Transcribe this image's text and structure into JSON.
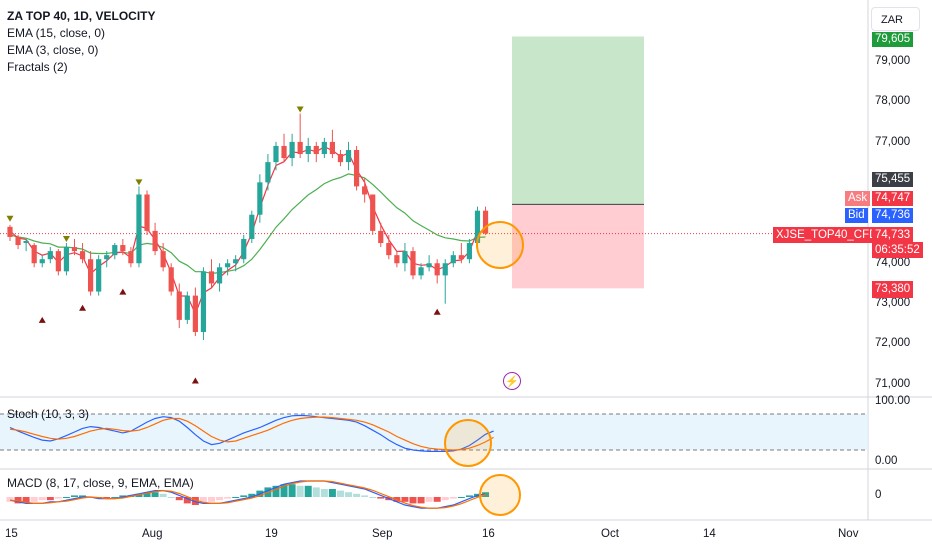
{
  "legend": {
    "title": "ZA TOP 40, 1D, VELOCITY",
    "indicators": [
      "EMA (15, close, 0)",
      "EMA (3, close, 0)",
      "Fractals (2)"
    ]
  },
  "currency_button": "ZAR",
  "price_axis": [
    "79,000",
    "78,000",
    "77,000",
    "74,000",
    "73,000",
    "72,000",
    "71,000"
  ],
  "price_tags": {
    "target": "79,605",
    "entry": "75,455",
    "ask_label": "Ask",
    "ask_value": "74,747",
    "bid_label": "Bid",
    "bid_value": "74,736",
    "symbol": "XJSE_TOP40_CFD",
    "last": "74,733",
    "countdown": "06:35:52",
    "stop": "73,380"
  },
  "stoch": {
    "label": "Stoch (10, 3, 3)",
    "axis": [
      "100.00",
      "0.00"
    ]
  },
  "macd": {
    "label": "MACD (8, 17, close, 9, EMA, EMA)",
    "axis": [
      "0"
    ]
  },
  "date_axis": [
    "15",
    "Aug",
    "19",
    "Sep",
    "16",
    "Oct",
    "14",
    "Nov"
  ],
  "colors": {
    "up": "#26a69a",
    "down": "#ef5350",
    "ema15": "#4caf50",
    "ema3": "#f23645",
    "stoch_k": "#2962ff",
    "stoch_d": "#ff6d00",
    "target_zone": "#c8e6c9",
    "stop_zone": "#ffcdd2",
    "highlight": "#ff9800"
  },
  "chart_data": {
    "type": "candlestick",
    "candles": [
      [
        74900,
        74950,
        74550,
        74650
      ],
      [
        74650,
        74700,
        74350,
        74450
      ],
      [
        74500,
        74600,
        74300,
        74550
      ],
      [
        74450,
        74500,
        73900,
        74000
      ],
      [
        74000,
        74200,
        73900,
        74100
      ],
      [
        74100,
        74400,
        74000,
        74300
      ],
      [
        74300,
        74350,
        73700,
        73800
      ],
      [
        73800,
        74500,
        73700,
        74400
      ],
      [
        74400,
        74600,
        74200,
        74300
      ],
      [
        74300,
        74500,
        74000,
        74100
      ],
      [
        74100,
        74300,
        73200,
        73300
      ],
      [
        73300,
        74200,
        73200,
        74100
      ],
      [
        74100,
        74300,
        73900,
        74200
      ],
      [
        74200,
        74500,
        74100,
        74450
      ],
      [
        74450,
        74600,
        74200,
        74300
      ],
      [
        74300,
        74400,
        73900,
        74000
      ],
      [
        74000,
        75900,
        73900,
        75700
      ],
      [
        75700,
        75800,
        74700,
        74800
      ],
      [
        74800,
        75000,
        74200,
        74300
      ],
      [
        74300,
        74500,
        73800,
        73900
      ],
      [
        73900,
        74000,
        73200,
        73300
      ],
      [
        73300,
        73500,
        72400,
        72600
      ],
      [
        72600,
        73300,
        72500,
        73200
      ],
      [
        73200,
        73400,
        72200,
        72300
      ],
      [
        72300,
        73900,
        72100,
        73800
      ],
      [
        73800,
        74100,
        73400,
        73500
      ],
      [
        73500,
        74000,
        73300,
        73900
      ],
      [
        73900,
        74100,
        73700,
        74000
      ],
      [
        74000,
        74200,
        73800,
        74100
      ],
      [
        74100,
        74700,
        74000,
        74600
      ],
      [
        74600,
        75300,
        74500,
        75200
      ],
      [
        75200,
        76200,
        75000,
        76000
      ],
      [
        76000,
        76700,
        75800,
        76500
      ],
      [
        76500,
        77000,
        76300,
        76900
      ],
      [
        76900,
        77200,
        76500,
        76600
      ],
      [
        76600,
        77200,
        76400,
        77000
      ],
      [
        77000,
        77700,
        76600,
        76700
      ],
      [
        76700,
        77100,
        76500,
        76900
      ],
      [
        76900,
        77000,
        76500,
        76700
      ],
      [
        76700,
        77100,
        76600,
        77000
      ],
      [
        77000,
        77300,
        76600,
        76700
      ],
      [
        76700,
        76800,
        76400,
        76500
      ],
      [
        76500,
        77000,
        76300,
        76800
      ],
      [
        76800,
        76900,
        75800,
        75900
      ],
      [
        75900,
        76100,
        75500,
        75700
      ],
      [
        75700,
        75700,
        74700,
        74800
      ],
      [
        74800,
        75000,
        74400,
        74500
      ],
      [
        74500,
        74700,
        74100,
        74200
      ],
      [
        74200,
        74300,
        73900,
        74000
      ],
      [
        74000,
        74500,
        73800,
        74300
      ],
      [
        74300,
        74400,
        73600,
        73700
      ],
      [
        73700,
        74000,
        73600,
        73900
      ],
      [
        73900,
        74200,
        73800,
        74000
      ],
      [
        74000,
        74100,
        73500,
        73700
      ],
      [
        73700,
        74100,
        73000,
        74000
      ],
      [
        74000,
        74300,
        73900,
        74200
      ],
      [
        74200,
        74500,
        74000,
        74100
      ],
      [
        74100,
        74600,
        74000,
        74500
      ],
      [
        74500,
        75400,
        74300,
        75300
      ],
      [
        75300,
        75400,
        74700,
        74733
      ]
    ],
    "ema15": [
      74700,
      74650,
      74620,
      74550,
      74500,
      74480,
      74400,
      74400,
      74380,
      74350,
      74250,
      74240,
      74240,
      74270,
      74270,
      74240,
      74450,
      74490,
      74460,
      74390,
      74260,
      74050,
      73950,
      73790,
      73790,
      73750,
      73770,
      73800,
      73840,
      73940,
      74100,
      74340,
      74610,
      74890,
      75100,
      75330,
      75510,
      75690,
      75820,
      75970,
      76060,
      76120,
      76210,
      76170,
      76110,
      75950,
      75760,
      75560,
      75370,
      75240,
      75050,
      74930,
      74820,
      74700,
      74630,
      74600,
      74560,
      74550,
      74640,
      74650
    ],
    "ema3": [
      74800,
      74620,
      74590,
      74300,
      74200,
      74250,
      74020,
      74210,
      74260,
      74180,
      73740,
      73920,
      74060,
      74250,
      74280,
      74140,
      74920,
      74860,
      74580,
      74240,
      73770,
      73190,
      73190,
      72750,
      73270,
      73390,
      73650,
      73820,
      73960,
      74280,
      74740,
      75370,
      75930,
      76420,
      76510,
      76750,
      76730,
      76810,
      76760,
      76880,
      76790,
      76640,
      76720,
      76310,
      76000,
      75400,
      74950,
      74580,
      74290,
      74300,
      74000,
      73950,
      73970,
      73840,
      73920,
      74060,
      74080,
      74290,
      74790,
      74760
    ],
    "fractals_up": [
      [
        0,
        75100
      ],
      [
        7,
        74600
      ],
      [
        16,
        76000
      ],
      [
        36,
        77800
      ]
    ],
    "fractals_down": [
      [
        4,
        72600
      ],
      [
        9,
        72900
      ],
      [
        14,
        73300
      ],
      [
        23,
        71100
      ],
      [
        53,
        72800
      ]
    ],
    "position": {
      "target": 79605,
      "entry": 75455,
      "stop": 73380,
      "last": 74733
    }
  }
}
